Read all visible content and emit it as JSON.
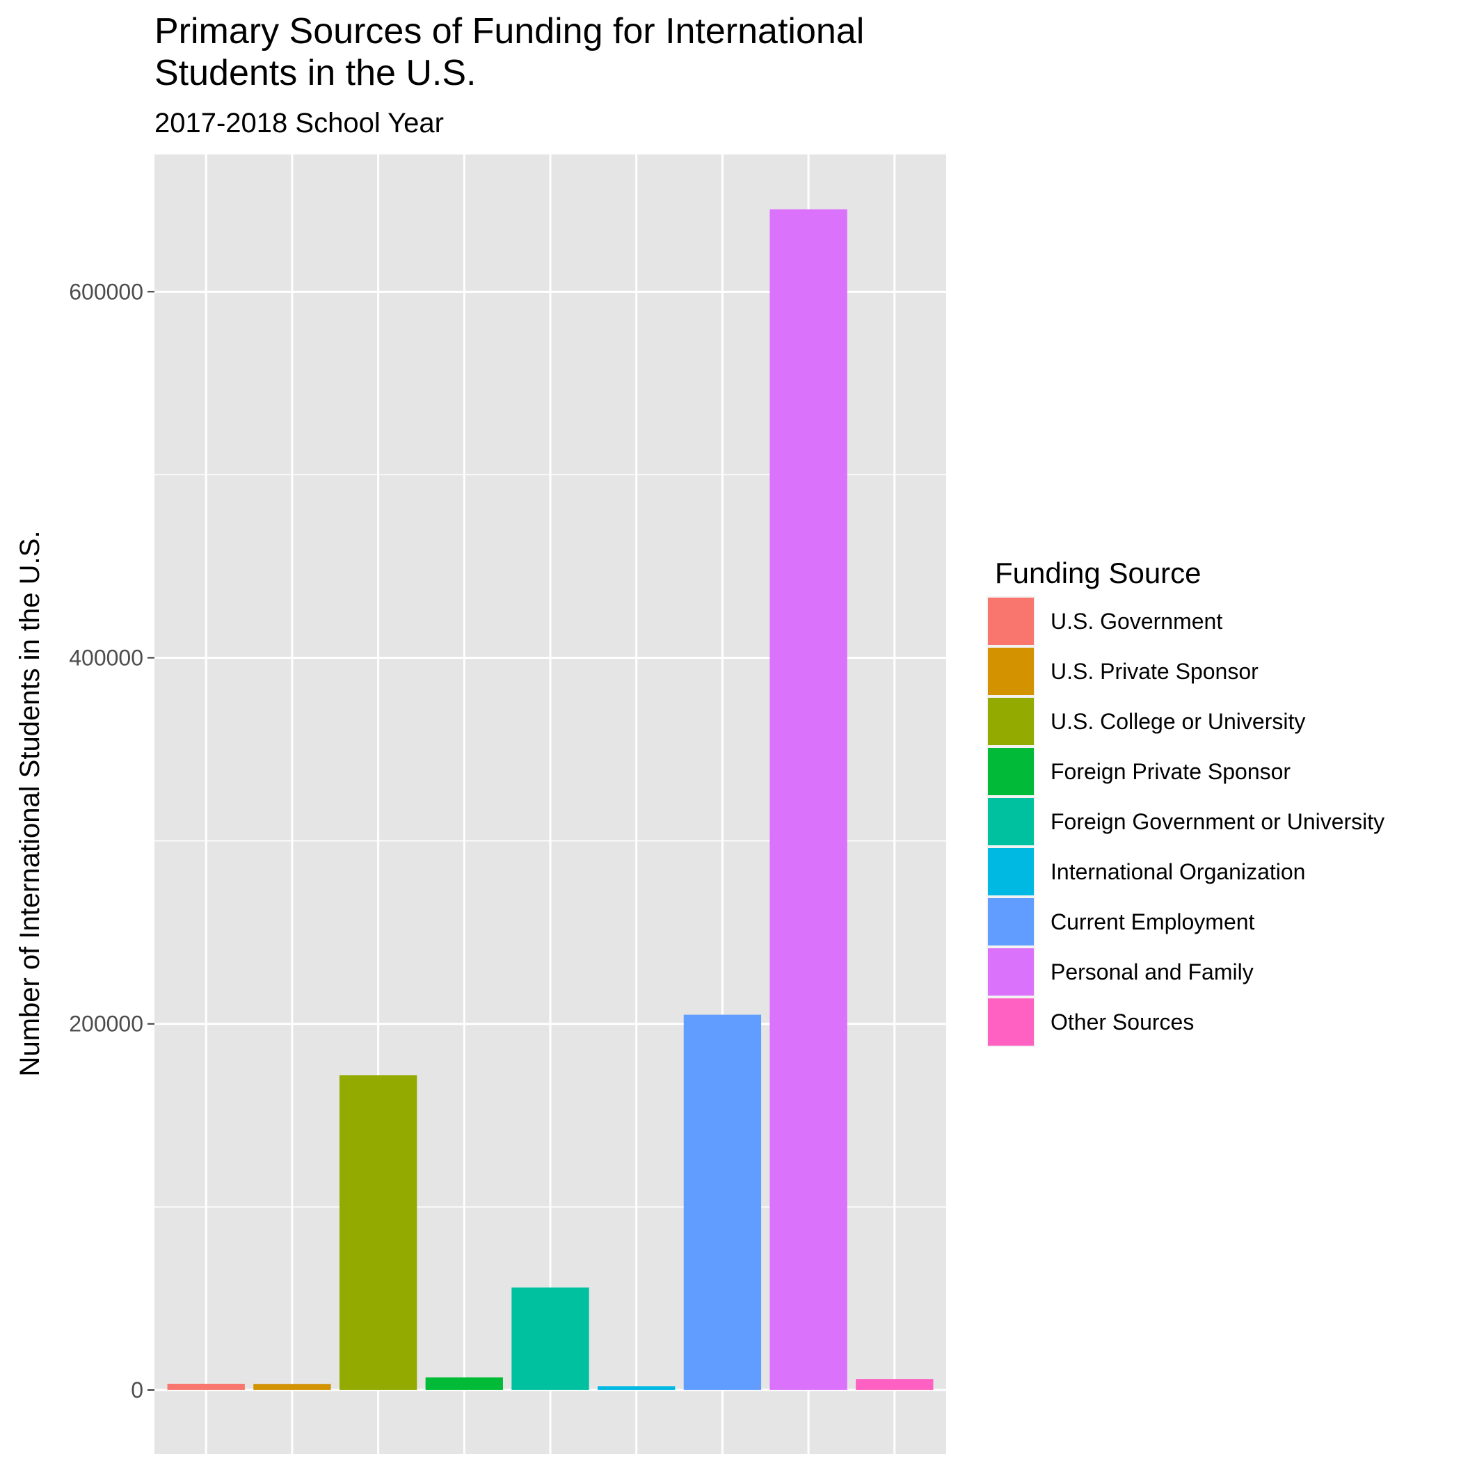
{
  "chart_data": {
    "type": "bar",
    "title_lines": [
      "Primary Sources of Funding for International",
      "Students in the U.S."
    ],
    "subtitle": "2017-2018 School Year",
    "xlabel": "",
    "ylabel": "Number of International Students in the U.S.",
    "ylim": [
      -35000,
      675000
    ],
    "y_ticks": [
      0,
      200000,
      400000,
      600000
    ],
    "y_tick_labels": [
      "0",
      "200000",
      "400000",
      "600000"
    ],
    "grid": true,
    "legend": {
      "title": "Funding Source",
      "position": "right"
    },
    "categories": [
      "U.S. Government",
      "U.S. Private Sponsor",
      "U.S. College or University",
      "Foreign Private Sponsor",
      "Foreign Government or University",
      "International Organization",
      "Current Employment",
      "Personal and Family",
      "Other Sources"
    ],
    "values": [
      3400,
      3300,
      172000,
      6900,
      56000,
      2100,
      205000,
      645000,
      6000
    ],
    "colors": [
      "#F8766D",
      "#D39200",
      "#93AA00",
      "#00BA38",
      "#00C19F",
      "#00B9E3",
      "#619CFF",
      "#DB72FB",
      "#FF61C3"
    ]
  }
}
